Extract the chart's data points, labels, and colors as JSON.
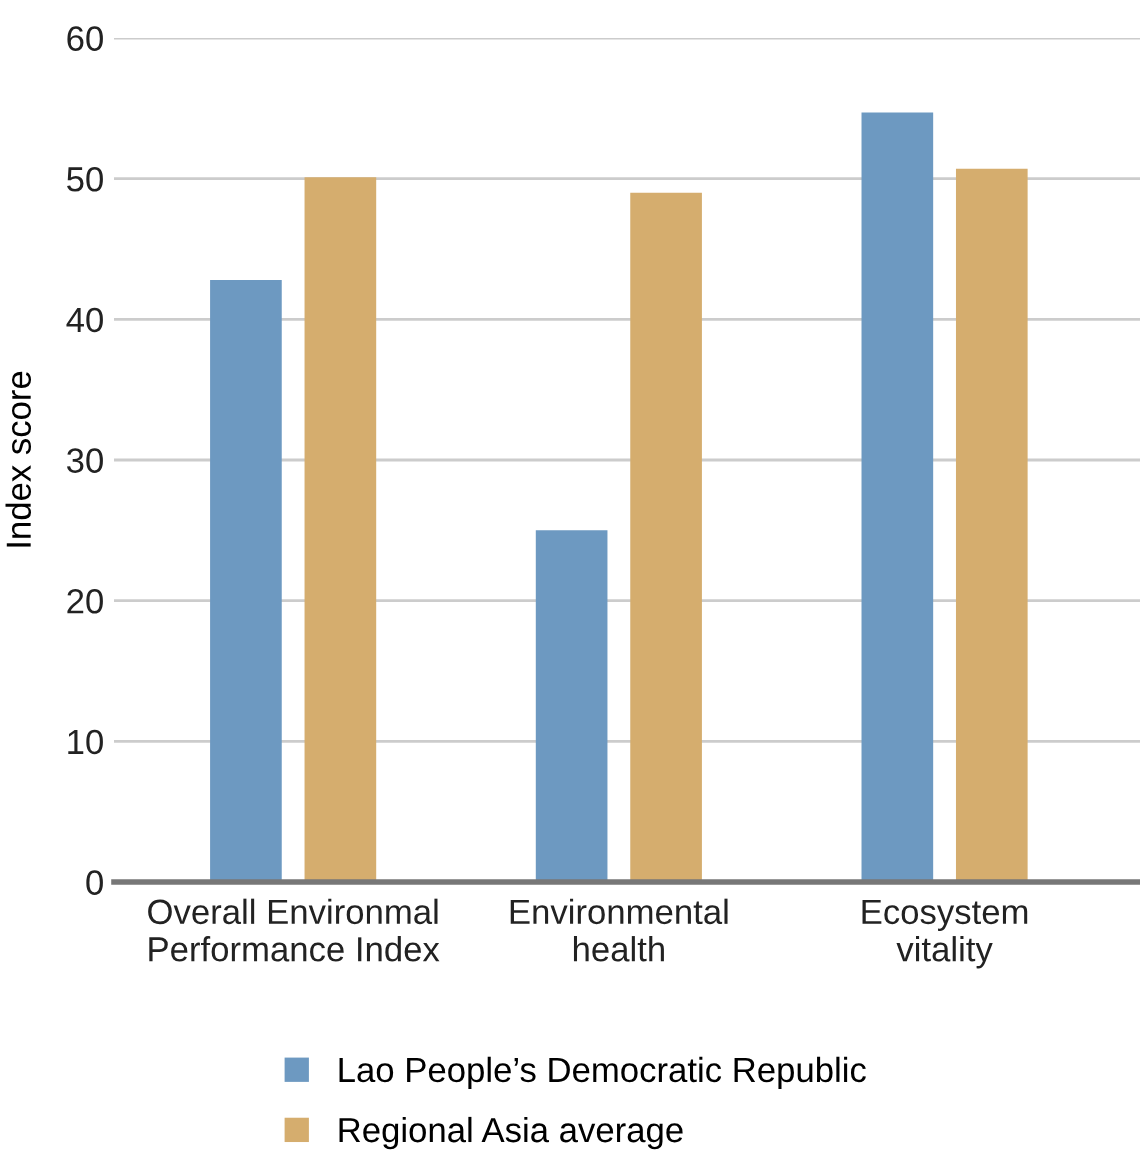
{
  "chart_data": {
    "type": "bar",
    "ylabel": "Index score",
    "categories": [
      "Overall Environmal\nPerformance Index",
      "Environmental\nhealth",
      "Ecosystem\nvitality"
    ],
    "series": [
      {
        "name": "Lao People’s Democratic Republic",
        "color": "#6d99c1",
        "values": [
          42.8,
          25.0,
          54.7
        ]
      },
      {
        "name": "Regional Asia average",
        "color": "#d5ad6e",
        "values": [
          50.1,
          49.0,
          50.7
        ]
      }
    ],
    "ylim": [
      0,
      60
    ],
    "yticks": [
      0,
      10,
      20,
      30,
      40,
      50,
      60
    ],
    "grid": "y",
    "legend": "bottom"
  }
}
